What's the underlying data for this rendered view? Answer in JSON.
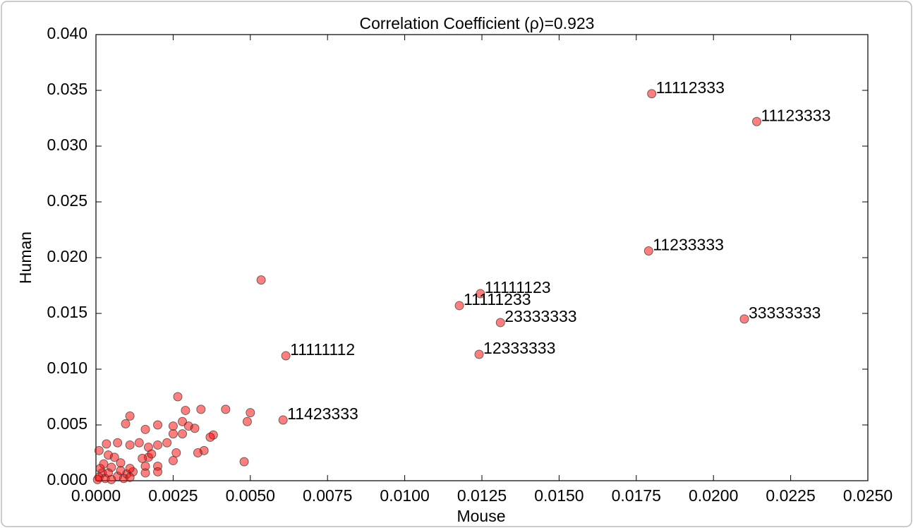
{
  "chart_data": {
    "type": "scatter",
    "title": "Correlation Coefficient (ρ)=0.923",
    "x_label": "Mouse",
    "y_label": "Human",
    "xlim": [
      0,
      0.025
    ],
    "ylim": [
      0,
      0.04
    ],
    "xticks": [
      {
        "value": 0,
        "label": "0.0000"
      },
      {
        "value": 0.0025,
        "label": "0.0025"
      },
      {
        "value": 0.005,
        "label": "0.0050"
      },
      {
        "value": 0.0075,
        "label": "0.0075"
      },
      {
        "value": 0.01,
        "label": "0.0100"
      },
      {
        "value": 0.0125,
        "label": "0.0125"
      },
      {
        "value": 0.015,
        "label": "0.0150"
      },
      {
        "value": 0.0175,
        "label": "0.0175"
      },
      {
        "value": 0.02,
        "label": "0.0200"
      },
      {
        "value": 0.0225,
        "label": "0.0225"
      },
      {
        "value": 0.025,
        "label": "0.0250"
      }
    ],
    "yticks": [
      {
        "value": 0,
        "label": "0.000"
      },
      {
        "value": 0.005,
        "label": "0.005"
      },
      {
        "value": 0.01,
        "label": "0.010"
      },
      {
        "value": 0.015,
        "label": "0.015"
      },
      {
        "value": 0.02,
        "label": "0.020"
      },
      {
        "value": 0.025,
        "label": "0.025"
      },
      {
        "value": 0.03,
        "label": "0.030"
      },
      {
        "value": 0.035,
        "label": "0.035"
      },
      {
        "value": 0.04,
        "label": "0.040"
      }
    ],
    "grid": false,
    "series": [
      {
        "color": "#ff0000",
        "x": [
          0.018,
          0.0214,
          0.0179,
          0.01245,
          0.01177,
          0.0131,
          0.021,
          0.01241,
          0.00615,
          0.00606,
          0.00535,
          0.00265,
          0.0042,
          0.0034,
          0.0029,
          0.005,
          0.0049,
          0.0048,
          0.0011,
          0.00096,
          0.002,
          0.0016,
          0.0025,
          0.0028,
          0.003,
          0.0032,
          0.0028,
          0.0025,
          0.0038,
          0.0037,
          0.0035,
          0.0033,
          0.0026,
          0.0025,
          0.0023,
          0.002,
          0.0017,
          0.0014,
          0.0011,
          0.0007,
          0.00034,
          0.0004,
          0.0001,
          0.0017,
          0.002,
          0.0016,
          0.0012,
          0.0008,
          0.0005,
          0.0002,
          0.0001,
          0.0003,
          0.0007,
          0.001,
          0.00014,
          0.0004,
          0.0008,
          0.0011,
          0.0015,
          0.0018,
          0.0005,
          5e-05,
          0.00025,
          0.0006,
          0.0009,
          0.0011,
          0.0016,
          0.002
        ],
        "values": [
          0.0347,
          0.0322,
          0.0206,
          0.01677,
          0.0157,
          0.01418,
          0.0145,
          0.01133,
          0.0112,
          0.00544,
          0.018,
          0.00753,
          0.0064,
          0.0064,
          0.0063,
          0.0061,
          0.0053,
          0.0017,
          0.0058,
          0.0051,
          0.005,
          0.0046,
          0.0049,
          0.0053,
          0.0049,
          0.0047,
          0.0042,
          0.0042,
          0.0041,
          0.0039,
          0.0027,
          0.0025,
          0.0025,
          0.0018,
          0.0034,
          0.0032,
          0.003,
          0.0034,
          0.0032,
          0.0034,
          0.0033,
          0.0023,
          0.0027,
          0.0021,
          0.0013,
          0.0013,
          0.0008,
          0.0016,
          0.0012,
          0.0007,
          0.0003,
          0.0002,
          0.0004,
          0.0006,
          0.0011,
          0.0007,
          0.0009,
          0.0011,
          0.002,
          0.0024,
          0.0001,
          0.0001,
          0.0015,
          0.0021,
          0.0002,
          0.0003,
          0.0007,
          0.0008
        ],
        "labels": [
          "11112333",
          "11123333",
          "11233333",
          "11111123",
          "11111233",
          "23333333",
          "33333333",
          "12333333",
          "11111112",
          "11423333",
          null,
          null,
          null,
          null,
          null,
          null,
          null,
          null,
          null,
          null,
          null,
          null,
          null,
          null,
          null,
          null,
          null,
          null,
          null,
          null,
          null,
          null,
          null,
          null,
          null,
          null,
          null,
          null,
          null,
          null,
          null,
          null,
          null,
          null,
          null,
          null,
          null,
          null,
          null,
          null,
          null,
          null,
          null,
          null,
          null,
          null,
          null,
          null,
          null,
          null,
          null,
          null,
          null,
          null,
          null,
          null,
          null,
          null
        ]
      }
    ]
  }
}
